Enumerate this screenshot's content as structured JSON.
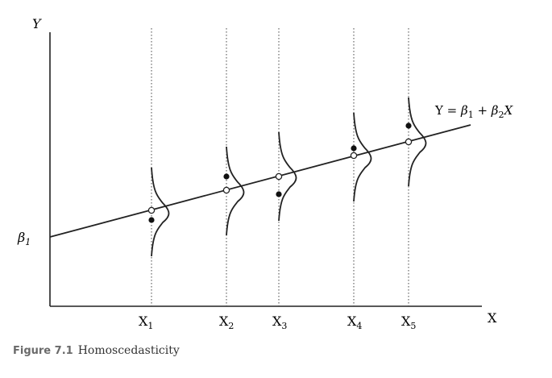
{
  "diagram": {
    "y_axis_label": "Y",
    "x_axis_label": "X",
    "intercept_label": "β",
    "intercept_sub": "1",
    "regression_equation": {
      "lhs": "Y = ",
      "b1": "β",
      "b1_sub": "1",
      "plus": " + ",
      "b2": "β",
      "b2_sub": "2",
      "x": "X"
    },
    "x_points": [
      {
        "label": "X",
        "sub": "1"
      },
      {
        "label": "X",
        "sub": "2"
      },
      {
        "label": "X",
        "sub": "3"
      },
      {
        "label": "X",
        "sub": "4"
      },
      {
        "label": "X",
        "sub": "5"
      }
    ]
  },
  "caption": {
    "number": "Figure 7.1",
    "title": "Homoscedasticity"
  }
}
